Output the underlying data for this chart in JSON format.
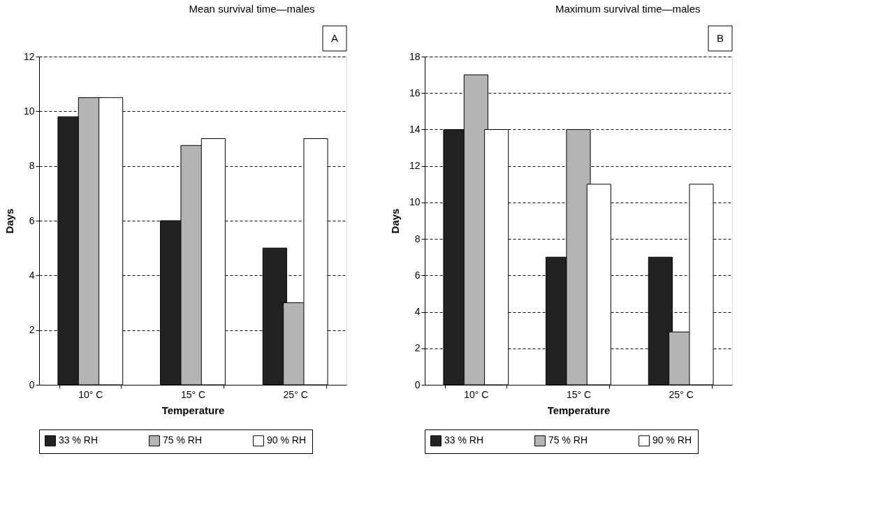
{
  "chart_data": [
    {
      "type": "bar",
      "title": "Mean survival time—males",
      "annotations": [
        "A"
      ],
      "xlabel": "Temperature",
      "ylabel": "Days",
      "categories": [
        "10° C",
        "15° C",
        "25° C"
      ],
      "series": [
        {
          "name": "33 % RH",
          "color": "#222222",
          "values": [
            9.8,
            6,
            5
          ]
        },
        {
          "name": "75 % RH",
          "color": "#b4b4b4",
          "values": [
            10.5,
            8.75,
            3
          ]
        },
        {
          "name": "90 % RH",
          "color": "#ffffff",
          "values": [
            10.5,
            9,
            9
          ]
        }
      ],
      "ylim": [
        0,
        12
      ],
      "yticks": [
        0,
        2,
        4,
        6,
        8,
        10,
        12
      ],
      "grid": "y",
      "legend": "bottom"
    },
    {
      "type": "bar",
      "title": "Maximum survival time—males",
      "annotations": [
        "B"
      ],
      "xlabel": "Temperature",
      "ylabel": "Days",
      "categories": [
        "10° C",
        "15° C",
        "25° C"
      ],
      "series": [
        {
          "name": "33 % RH",
          "color": "#222222",
          "values": [
            14,
            7,
            7
          ]
        },
        {
          "name": "75 % RH",
          "color": "#b4b4b4",
          "values": [
            17,
            14,
            2.9
          ]
        },
        {
          "name": "90 % RH",
          "color": "#ffffff",
          "values": [
            14,
            11,
            11
          ]
        }
      ],
      "ylim": [
        0,
        18
      ],
      "yticks": [
        0,
        2,
        4,
        6,
        8,
        10,
        12,
        14,
        16,
        18
      ],
      "grid": "y",
      "legend": "bottom"
    }
  ]
}
